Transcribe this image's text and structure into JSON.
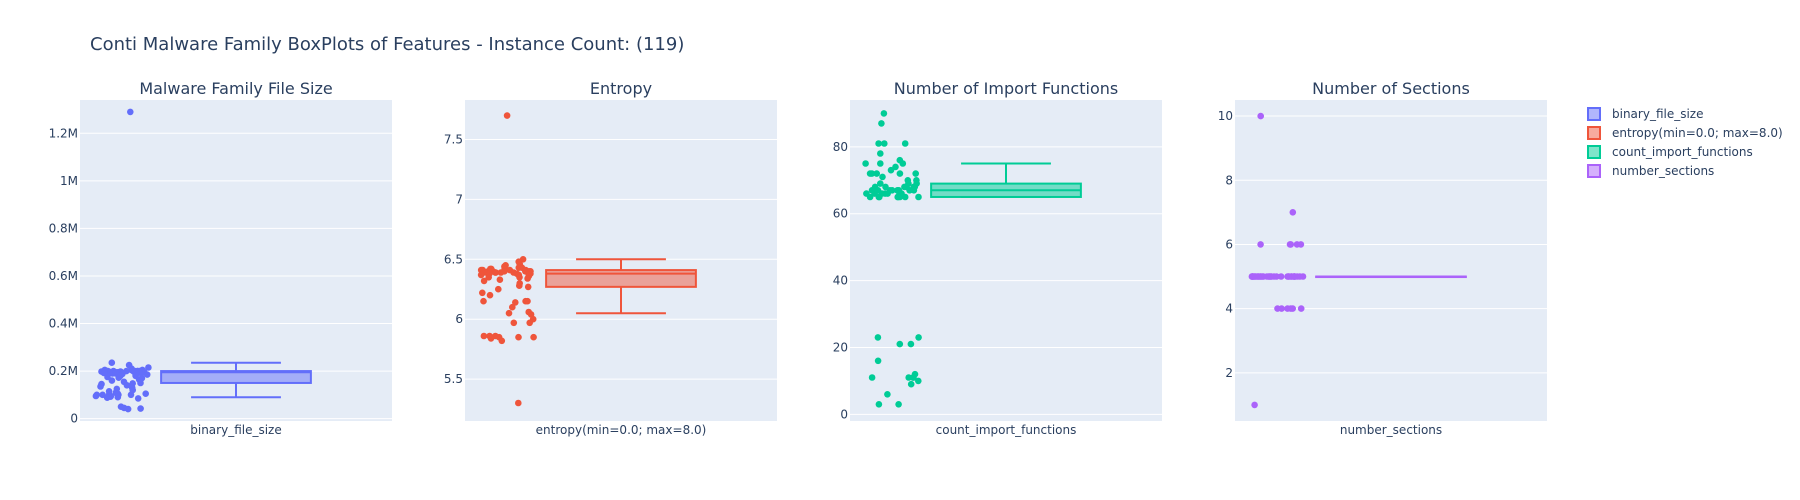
{
  "title": "Conti Malware Family BoxPlots of Features - Instance Count: (119)",
  "colors": {
    "binary_file_size": "#636efa",
    "entropy": "#ef553b",
    "count_import_functions": "#00cc96",
    "number_sections": "#ab63fa",
    "plot_bg": "#e5ecf6",
    "grid": "#ffffff",
    "text": "#2a3f5f"
  },
  "legend": {
    "placement": "top-right",
    "items": [
      {
        "label": "binary_file_size",
        "color_key": "binary_file_size"
      },
      {
        "label": "entropy(min=0.0; max=8.0)",
        "color_key": "entropy"
      },
      {
        "label": "count_import_functions",
        "color_key": "count_import_functions"
      },
      {
        "label": "number_sections",
        "color_key": "number_sections"
      }
    ]
  },
  "chart_data": [
    {
      "type": "box",
      "title": "Malware Family File Size",
      "category": "binary_file_size",
      "color_key": "binary_file_size",
      "ylim": [
        -10000,
        1340000
      ],
      "yticks": [
        0,
        200000,
        400000,
        600000,
        800000,
        1000000,
        1200000
      ],
      "ytick_labels": [
        "0",
        "0.2M",
        "0.4M",
        "0.6M",
        "0.8M",
        "1M",
        "1.2M"
      ],
      "box": {
        "lowerfence": 90000,
        "q1": 150000,
        "median": 195000,
        "q3": 200000,
        "upperfence": 235000
      },
      "points": [
        1290000,
        235000,
        225000,
        215000,
        210000,
        205000,
        205000,
        205000,
        200000,
        200000,
        200000,
        200000,
        200000,
        200000,
        200000,
        200000,
        200000,
        200000,
        198000,
        198000,
        198000,
        198000,
        196000,
        196000,
        196000,
        195000,
        195000,
        195000,
        195000,
        195000,
        193000,
        193000,
        192000,
        190000,
        190000,
        188000,
        185000,
        180000,
        180000,
        175000,
        172000,
        170000,
        165000,
        160000,
        155000,
        150000,
        148000,
        145000,
        140000,
        135000,
        130000,
        125000,
        120000,
        115000,
        110000,
        105000,
        105000,
        105000,
        100000,
        100000,
        100000,
        100000,
        100000,
        95000,
        95000,
        92000,
        90000,
        88000,
        85000,
        50000,
        45000,
        42000,
        40000
      ]
    },
    {
      "type": "box",
      "title": "Entropy",
      "category": "entropy(min=0.0; max=8.0)",
      "color_key": "entropy",
      "ylim": [
        5.15,
        7.83
      ],
      "yticks": [
        5.5,
        6,
        6.5,
        7,
        7.5
      ],
      "ytick_labels": [
        "5.5",
        "6",
        "6.5",
        "7",
        "7.5"
      ],
      "box": {
        "lowerfence": 6.05,
        "q1": 6.27,
        "median": 6.38,
        "q3": 6.41,
        "upperfence": 6.5
      },
      "points": [
        7.7,
        6.5,
        6.48,
        6.46,
        6.45,
        6.44,
        6.43,
        6.43,
        6.42,
        6.42,
        6.42,
        6.41,
        6.41,
        6.41,
        6.41,
        6.4,
        6.4,
        6.4,
        6.4,
        6.4,
        6.4,
        6.39,
        6.39,
        6.39,
        6.39,
        6.39,
        6.38,
        6.38,
        6.38,
        6.38,
        6.37,
        6.37,
        6.37,
        6.36,
        6.35,
        6.35,
        6.34,
        6.33,
        6.32,
        6.3,
        6.28,
        6.27,
        6.25,
        6.22,
        6.2,
        6.15,
        6.15,
        6.15,
        6.14,
        6.1,
        6.06,
        6.05,
        6.04,
        6.0,
        5.97,
        5.97,
        5.86,
        5.86,
        5.86,
        5.85,
        5.85,
        5.85,
        5.84,
        5.82,
        5.3
      ]
    },
    {
      "type": "box",
      "title": "Number of Import Functions",
      "category": "count_import_functions",
      "color_key": "count_import_functions",
      "ylim": [
        -2,
        94
      ],
      "yticks": [
        0,
        20,
        40,
        60,
        80
      ],
      "ytick_labels": [
        "0",
        "20",
        "40",
        "60",
        "80"
      ],
      "box": {
        "lowerfence": 65,
        "q1": 65,
        "median": 67,
        "q3": 69,
        "upperfence": 75
      },
      "points": [
        90,
        87,
        81,
        81,
        81,
        78,
        76,
        75,
        75,
        75,
        74,
        73,
        72,
        72,
        72,
        72,
        72,
        71,
        70,
        70,
        69,
        69,
        69,
        68,
        68,
        68,
        68,
        68,
        68,
        67,
        67,
        67,
        67,
        67,
        67,
        67,
        67,
        66,
        66,
        66,
        66,
        66,
        66,
        66,
        65,
        65,
        65,
        65,
        65,
        65,
        65,
        65,
        23,
        23,
        21,
        21,
        16,
        12,
        11,
        11,
        11,
        11,
        10,
        9,
        6,
        3,
        3
      ]
    },
    {
      "type": "box",
      "title": "Number of Sections",
      "category": "number_sections",
      "color_key": "number_sections",
      "ylim": [
        0.5,
        10.5
      ],
      "yticks": [
        2,
        4,
        6,
        8,
        10
      ],
      "ytick_labels": [
        "2",
        "4",
        "6",
        "8",
        "10"
      ],
      "box": {
        "lowerfence": 5,
        "q1": 5,
        "median": 5,
        "q3": 5,
        "upperfence": 5
      },
      "points": [
        10,
        7,
        6,
        6,
        6,
        6,
        6,
        5,
        5,
        5,
        5,
        5,
        5,
        5,
        5,
        5,
        5,
        5,
        5,
        5,
        5,
        5,
        5,
        5,
        5,
        5,
        5,
        5,
        5,
        5,
        5,
        5,
        5,
        5,
        5,
        5,
        5,
        5,
        5,
        5,
        5,
        4,
        4,
        4,
        4,
        4,
        4,
        1
      ]
    }
  ]
}
